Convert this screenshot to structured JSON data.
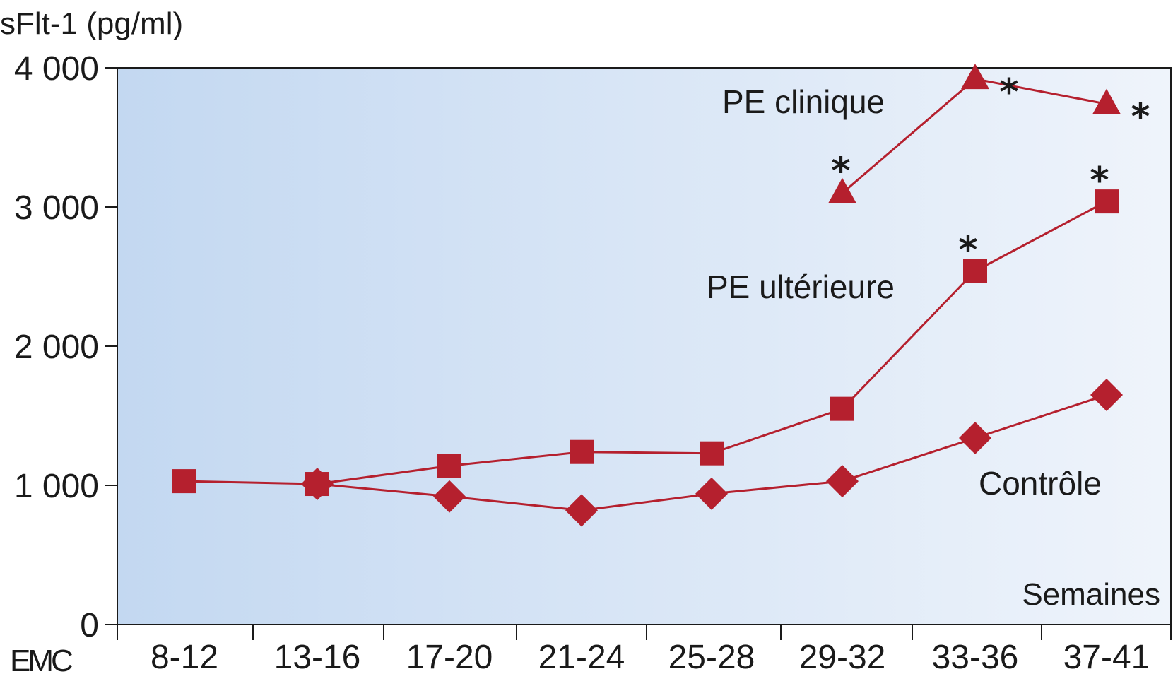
{
  "chart_data": {
    "type": "line",
    "ylabel": "sFlt-1 (pg/ml)",
    "xlabel": "Semaines",
    "categories": [
      "8-12",
      "13-16",
      "17-20",
      "21-24",
      "25-28",
      "29-32",
      "33-36",
      "37-41"
    ],
    "ylim": [
      0,
      4000
    ],
    "yticks": [
      0,
      1000,
      2000,
      3000,
      4000
    ],
    "ytick_labels": [
      "0",
      "1 000",
      "2 000",
      "3 000",
      "4 000"
    ],
    "grid": false,
    "background": "blue-to-white horizontal gradient",
    "line_color": "#b5202e",
    "series": [
      {
        "name": "PE clinique",
        "marker": "triangle",
        "values": [
          null,
          null,
          null,
          null,
          null,
          3100,
          3920,
          3740
        ],
        "significant": [
          false,
          false,
          false,
          false,
          false,
          true,
          true,
          true
        ]
      },
      {
        "name": "PE ultérieure",
        "marker": "square",
        "values": [
          1030,
          1010,
          1140,
          1240,
          1230,
          1550,
          2540,
          3040
        ],
        "significant": [
          false,
          false,
          false,
          false,
          false,
          false,
          true,
          true
        ]
      },
      {
        "name": "Contrôle",
        "marker": "diamond",
        "values": [
          null,
          1010,
          920,
          820,
          940,
          1030,
          1340,
          1650
        ],
        "significant": [
          false,
          false,
          false,
          false,
          false,
          false,
          false,
          false
        ]
      }
    ],
    "significance_marker": "*"
  },
  "logo": "EMC"
}
